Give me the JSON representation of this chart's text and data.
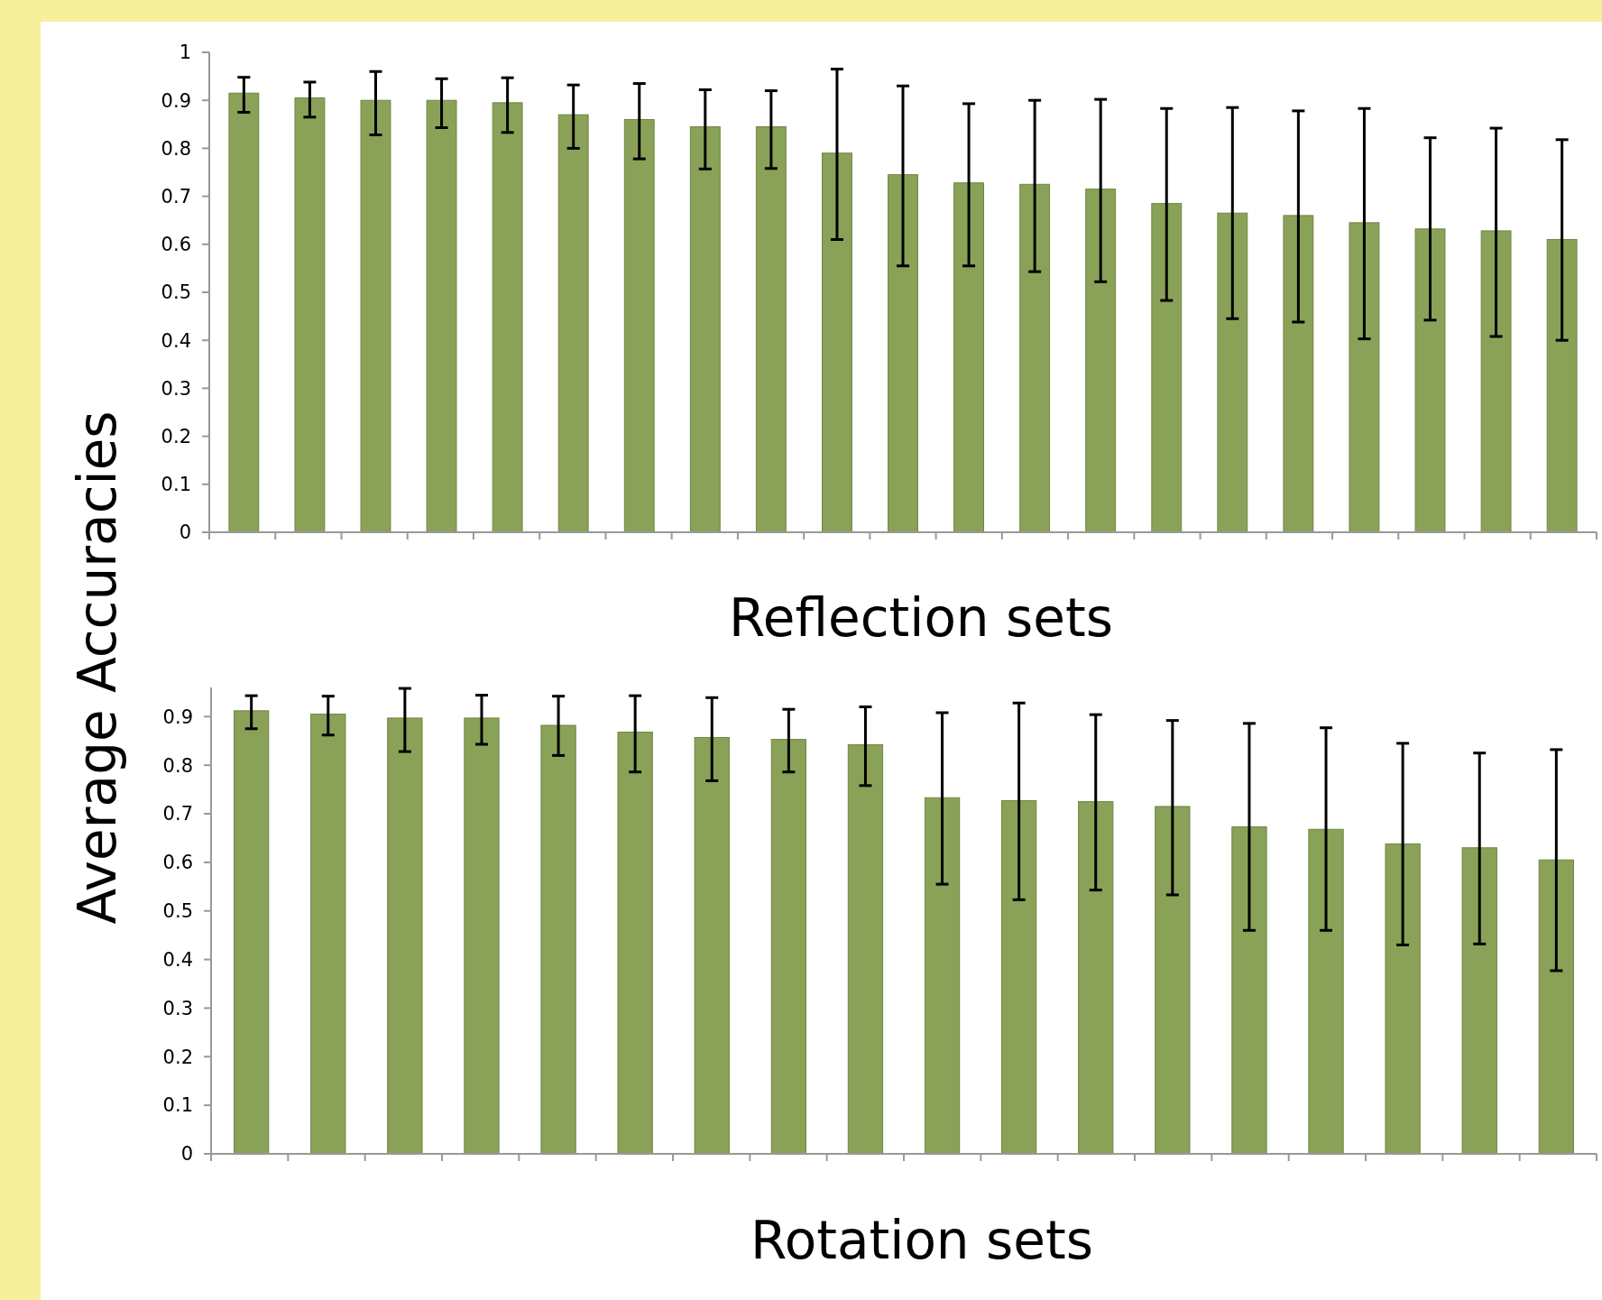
{
  "chart_data": [
    {
      "type": "bar",
      "xlabel": "Reflection sets",
      "ylabel": "Average Accuracies",
      "color": "#8aa258",
      "categories": [
        null,
        null,
        null,
        null,
        null,
        null,
        null,
        null,
        null,
        null,
        null,
        null,
        null,
        null,
        null,
        null,
        null,
        null,
        null,
        null,
        null
      ],
      "values": [
        0.915,
        0.905,
        0.9,
        0.9,
        0.895,
        0.87,
        0.86,
        0.845,
        0.845,
        0.79,
        0.745,
        0.728,
        0.725,
        0.715,
        0.685,
        0.665,
        0.66,
        0.645,
        0.632,
        0.628,
        0.61
      ],
      "errors": [
        [
          0.875,
          0.948
        ],
        [
          0.865,
          0.938
        ],
        [
          0.828,
          0.96
        ],
        [
          0.843,
          0.945
        ],
        [
          0.833,
          0.947
        ],
        [
          0.8,
          0.932
        ],
        [
          0.778,
          0.935
        ],
        [
          0.757,
          0.922
        ],
        [
          0.758,
          0.92
        ],
        [
          0.61,
          0.965
        ],
        [
          0.555,
          0.93
        ],
        [
          0.555,
          0.893
        ],
        [
          0.543,
          0.9
        ],
        [
          0.522,
          0.902
        ],
        [
          0.483,
          0.883
        ],
        [
          0.445,
          0.885
        ],
        [
          0.438,
          0.878
        ],
        [
          0.403,
          0.883
        ],
        [
          0.442,
          0.822
        ],
        [
          0.408,
          0.842
        ],
        [
          0.4,
          0.818
        ]
      ],
      "ylim": [
        0,
        1
      ],
      "yticks": [
        0,
        0.1,
        0.2,
        0.3,
        0.4,
        0.5,
        0.6,
        0.7,
        0.8,
        0.9,
        1
      ],
      "grid": false
    },
    {
      "type": "bar",
      "xlabel": "Rotation sets",
      "color": "#8aa258",
      "categories": [
        null,
        null,
        null,
        null,
        null,
        null,
        null,
        null,
        null,
        null,
        null,
        null,
        null,
        null,
        null,
        null,
        null,
        null
      ],
      "values": [
        0.912,
        0.905,
        0.897,
        0.897,
        0.882,
        0.868,
        0.857,
        0.853,
        0.842,
        0.733,
        0.727,
        0.725,
        0.715,
        0.673,
        0.668,
        0.638,
        0.63,
        0.605
      ],
      "errors": [
        [
          0.875,
          0.943
        ],
        [
          0.862,
          0.942
        ],
        [
          0.828,
          0.958
        ],
        [
          0.843,
          0.944
        ],
        [
          0.82,
          0.942
        ],
        [
          0.786,
          0.943
        ],
        [
          0.768,
          0.939
        ],
        [
          0.786,
          0.915
        ],
        [
          0.758,
          0.92
        ],
        [
          0.555,
          0.908
        ],
        [
          0.523,
          0.928
        ],
        [
          0.543,
          0.904
        ],
        [
          0.533,
          0.892
        ],
        [
          0.46,
          0.886
        ],
        [
          0.46,
          0.877
        ],
        [
          0.43,
          0.845
        ],
        [
          0.432,
          0.825
        ],
        [
          0.377,
          0.832
        ]
      ],
      "ylim": [
        0,
        0.96
      ],
      "yticks": [
        0,
        0.1,
        0.2,
        0.3,
        0.4,
        0.5,
        0.6,
        0.7,
        0.8,
        0.9
      ],
      "grid": false
    }
  ]
}
